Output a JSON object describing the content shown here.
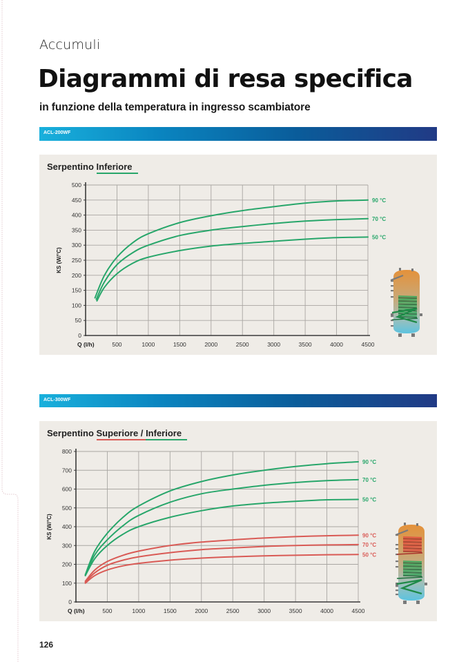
{
  "page": {
    "section": "Accumuli",
    "title": "Diagrammi di resa specifica",
    "subtitle": "in funzione della temperatura in ingresso scambiatore",
    "page_number": "126"
  },
  "colors": {
    "green_curve": "#27a66a",
    "red_curve": "#d95a55",
    "panel_bg": "#efece7",
    "grid": "#a9a6a2",
    "axis": "#3a3a3a"
  },
  "chart_data": [
    {
      "type": "line",
      "model": "ACL-200WF",
      "title": "Serpentino Inferiore",
      "title_parts": [
        {
          "text": "Serpentino ",
          "underline": null
        },
        {
          "text": "Inferiore",
          "underline": "green"
        }
      ],
      "xlabel": "Q (l/h)",
      "ylabel": "KS (W/°C)",
      "xlim": [
        0,
        4500
      ],
      "ylim": [
        0,
        500
      ],
      "xticks": [
        500,
        1000,
        1500,
        2000,
        2500,
        3000,
        3500,
        4000,
        4500
      ],
      "yticks": [
        0,
        50,
        100,
        150,
        200,
        250,
        300,
        350,
        400,
        450,
        500
      ],
      "grid": true,
      "series": [
        {
          "name": "90 °C",
          "group": "green",
          "x": [
            150,
            300,
            500,
            750,
            1000,
            1500,
            2000,
            2500,
            3000,
            3500,
            4000,
            4500
          ],
          "values": [
            125,
            200,
            260,
            308,
            338,
            375,
            398,
            415,
            428,
            440,
            447,
            450
          ]
        },
        {
          "name": "70 °C",
          "group": "green",
          "x": [
            170,
            300,
            500,
            750,
            1000,
            1500,
            2000,
            2500,
            3000,
            3500,
            4000,
            4500
          ],
          "values": [
            120,
            178,
            235,
            275,
            300,
            332,
            350,
            362,
            372,
            380,
            385,
            388
          ]
        },
        {
          "name": "50 °C",
          "group": "green",
          "x": [
            180,
            300,
            500,
            750,
            1000,
            1500,
            2000,
            2500,
            3000,
            3500,
            4000,
            4500
          ],
          "values": [
            115,
            160,
            205,
            240,
            260,
            282,
            297,
            306,
            313,
            320,
            325,
            327
          ]
        }
      ]
    },
    {
      "type": "line",
      "model": "ACL-300WF",
      "title": "Serpentino Superiore / Inferiore",
      "title_parts": [
        {
          "text": "Serpentino ",
          "underline": null
        },
        {
          "text": "Superiore /",
          "underline": "red"
        },
        {
          "text": " ",
          "underline": null
        },
        {
          "text": "Inferiore",
          "underline": "green"
        }
      ],
      "xlabel": "Q (l/h)",
      "ylabel": "KS (W/°C)",
      "xlim": [
        0,
        4500
      ],
      "ylim": [
        0,
        800
      ],
      "xticks": [
        500,
        1000,
        1500,
        2000,
        2500,
        3000,
        3500,
        4000,
        4500
      ],
      "yticks": [
        0,
        100,
        200,
        300,
        400,
        500,
        600,
        700,
        800
      ],
      "grid": true,
      "series": [
        {
          "name": "90 °C",
          "group": "green",
          "x": [
            150,
            300,
            500,
            750,
            1000,
            1500,
            2000,
            2500,
            3000,
            3500,
            4000,
            4500
          ],
          "values": [
            145,
            270,
            365,
            450,
            510,
            590,
            640,
            675,
            700,
            720,
            735,
            745
          ]
        },
        {
          "name": "70 °C",
          "group": "green",
          "x": [
            150,
            300,
            500,
            750,
            1000,
            1500,
            2000,
            2500,
            3000,
            3500,
            4000,
            4500
          ],
          "values": [
            140,
            250,
            330,
            405,
            460,
            530,
            575,
            600,
            620,
            635,
            645,
            650
          ]
        },
        {
          "name": "50 °C",
          "group": "green",
          "x": [
            150,
            300,
            500,
            750,
            1000,
            1500,
            2000,
            2500,
            3000,
            3500,
            4000,
            4500
          ],
          "values": [
            140,
            230,
            300,
            360,
            400,
            450,
            485,
            510,
            525,
            535,
            543,
            545
          ]
        },
        {
          "name": "90 °C",
          "group": "red",
          "x": [
            150,
            300,
            500,
            750,
            1000,
            1500,
            2000,
            2500,
            3000,
            3500,
            4000,
            4500
          ],
          "values": [
            110,
            170,
            215,
            248,
            270,
            300,
            318,
            330,
            340,
            347,
            352,
            355
          ]
        },
        {
          "name": "70 °C",
          "group": "red",
          "x": [
            150,
            300,
            500,
            750,
            1000,
            1500,
            2000,
            2500,
            3000,
            3500,
            4000,
            4500
          ],
          "values": [
            105,
            155,
            195,
            222,
            240,
            262,
            278,
            287,
            295,
            300,
            303,
            305
          ]
        },
        {
          "name": "50 °C",
          "group": "red",
          "x": [
            150,
            300,
            500,
            750,
            1000,
            1500,
            2000,
            2500,
            3000,
            3500,
            4000,
            4500
          ],
          "values": [
            100,
            140,
            170,
            192,
            205,
            222,
            233,
            240,
            245,
            248,
            251,
            252
          ]
        }
      ]
    }
  ],
  "illustrations": [
    {
      "name": "tank-single-coil",
      "coils": [
        "green"
      ]
    },
    {
      "name": "tank-double-coil",
      "coils": [
        "red",
        "green"
      ]
    }
  ]
}
